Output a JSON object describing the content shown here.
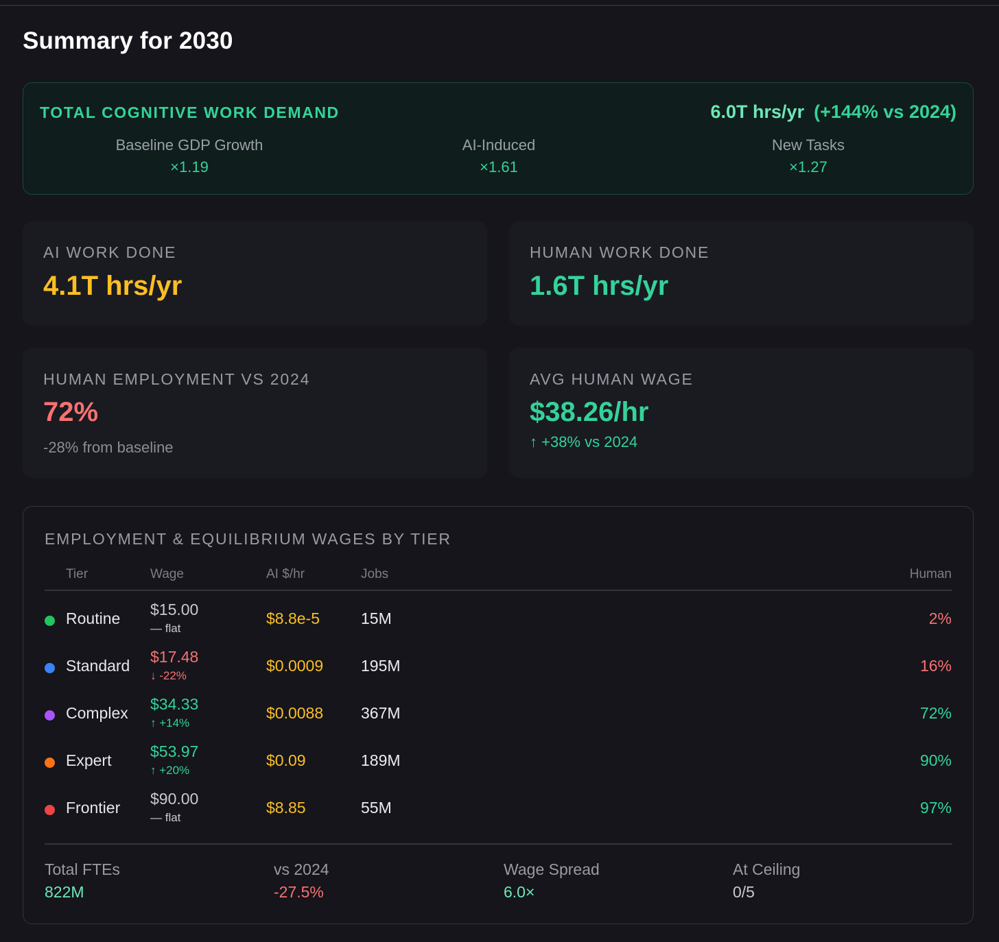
{
  "page": {
    "title": "Summary for 2030"
  },
  "demand": {
    "label": "TOTAL COGNITIVE WORK DEMAND",
    "total": "6.0T hrs/yr",
    "change": "(+144% vs 2024)",
    "factors": [
      {
        "label": "Baseline GDP Growth",
        "value": "×1.19"
      },
      {
        "label": "AI-Induced",
        "value": "×1.61"
      },
      {
        "label": "New Tasks",
        "value": "×1.27"
      }
    ]
  },
  "cards": {
    "ai_work": {
      "label": "AI WORK DONE",
      "value": "4.1T hrs/yr"
    },
    "human_work": {
      "label": "HUMAN WORK DONE",
      "value": "1.6T hrs/yr"
    },
    "employment": {
      "label": "HUMAN EMPLOYMENT VS 2024",
      "value": "72%",
      "sub": "-28% from baseline"
    },
    "wage": {
      "label": "AVG HUMAN WAGE",
      "value": "$38.26/hr",
      "sub": "↑ +38% vs 2024"
    }
  },
  "tiers": {
    "title": "EMPLOYMENT & EQUILIBRIUM WAGES BY TIER",
    "columns": {
      "tier": "Tier",
      "wage": "Wage",
      "ai_cost": "AI $/hr",
      "jobs": "Jobs",
      "human": "Human"
    },
    "rows": [
      {
        "name": "Routine",
        "dot_color": "#22c55e",
        "wage": "$15.00",
        "wage_change": "— flat",
        "wage_trend": "flat",
        "ai_cost": "$8.8e-5",
        "jobs": "15M",
        "human": "2%",
        "human_trend": "low"
      },
      {
        "name": "Standard",
        "dot_color": "#3b82f6",
        "wage": "$17.48",
        "wage_change": "↓ -22%",
        "wage_trend": "down",
        "ai_cost": "$0.0009",
        "jobs": "195M",
        "human": "16%",
        "human_trend": "low"
      },
      {
        "name": "Complex",
        "dot_color": "#a855f7",
        "wage": "$34.33",
        "wage_change": "↑ +14%",
        "wage_trend": "up",
        "ai_cost": "$0.0088",
        "jobs": "367M",
        "human": "72%",
        "human_trend": "high"
      },
      {
        "name": "Expert",
        "dot_color": "#f97316",
        "wage": "$53.97",
        "wage_change": "↑ +20%",
        "wage_trend": "up",
        "ai_cost": "$0.09",
        "jobs": "189M",
        "human": "90%",
        "human_trend": "high"
      },
      {
        "name": "Frontier",
        "dot_color": "#ef4444",
        "wage": "$90.00",
        "wage_change": "— flat",
        "wage_trend": "flat",
        "ai_cost": "$8.85",
        "jobs": "55M",
        "human": "97%",
        "human_trend": "high"
      }
    ],
    "footer": [
      {
        "label": "Total FTEs",
        "value": "822M",
        "tone": "lime"
      },
      {
        "label": "vs 2024",
        "value": "-27.5%",
        "tone": "red"
      },
      {
        "label": "Wage Spread",
        "value": "6.0×",
        "tone": "lime"
      },
      {
        "label": "At Ceiling",
        "value": "0/5",
        "tone": "grey"
      }
    ]
  },
  "colors": {
    "accent_green": "#34d399",
    "accent_gold": "#fbbf24",
    "accent_red": "#f87171",
    "background": "#15151b"
  }
}
